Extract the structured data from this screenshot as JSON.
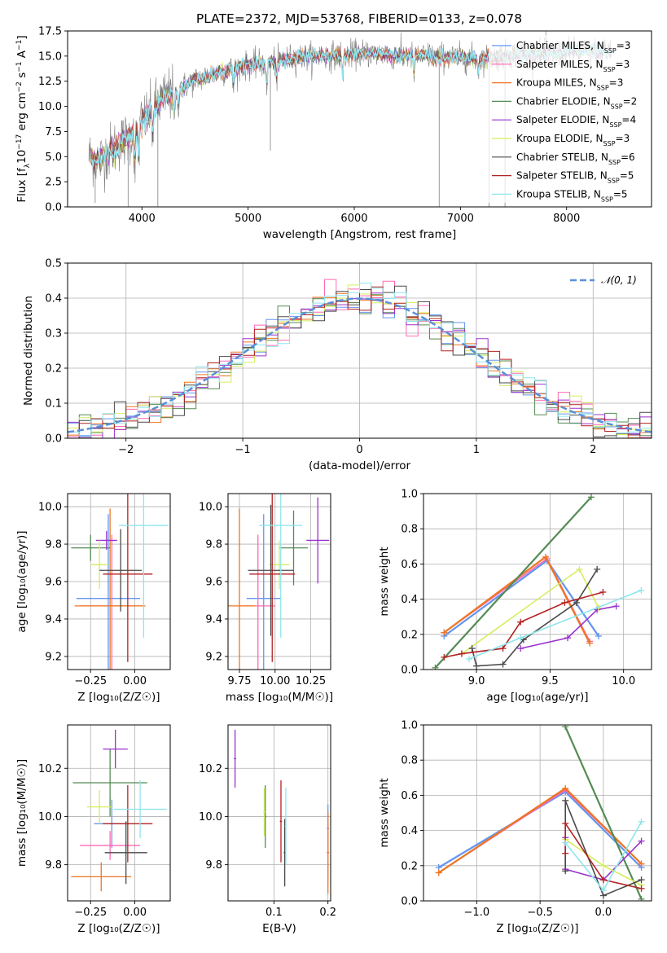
{
  "figure": {
    "title": "PLATE=2372, MJD=53768, FIBERID=0133, z=0.078"
  },
  "series": [
    {
      "name": "Chabrier MILES, N",
      "sub": "SSP",
      "suffix": "=3",
      "color": "#6495ed"
    },
    {
      "name": "Salpeter MILES, N",
      "sub": "SSP",
      "suffix": "=3",
      "color": "#ff69b4"
    },
    {
      "name": "Kroupa MILES, N",
      "sub": "SSP",
      "suffix": "=3",
      "color": "#ee7621"
    },
    {
      "name": "Chabrier ELODIE, N",
      "sub": "SSP",
      "suffix": "=2",
      "color": "#548b54"
    },
    {
      "name": "Salpeter ELODIE, N",
      "sub": "SSP",
      "suffix": "=4",
      "color": "#9a32cd"
    },
    {
      "name": "Kroupa ELODIE, N",
      "sub": "SSP",
      "suffix": "=3",
      "color": "#d4ee5e"
    },
    {
      "name": "Chabrier STELIB, N",
      "sub": "SSP",
      "suffix": "=6",
      "color": "#4a4a4a"
    },
    {
      "name": "Salpeter STELIB, N",
      "sub": "SSP",
      "suffix": "=5",
      "color": "#b22222"
    },
    {
      "name": "Kroupa STELIB, N",
      "sub": "SSP",
      "suffix": "=5",
      "color": "#8ee5ee"
    }
  ],
  "chart_data": [
    {
      "id": "spectrum",
      "type": "line",
      "xlabel": "wavelength [Angstrom, rest frame]",
      "ylabel_parts": [
        "Flux [f",
        "λ",
        "10",
        "−17",
        " erg cm",
        "−2",
        " s",
        "−1",
        " A",
        "−1",
        "]"
      ],
      "xlim": [
        3300,
        8800
      ],
      "ylim": [
        0,
        17.5
      ],
      "xticks": [
        4000,
        5000,
        6000,
        7000,
        8000
      ],
      "yticks": [
        0.0,
        2.5,
        5.0,
        7.5,
        10.0,
        12.5,
        15.0,
        17.5
      ],
      "data_color": "#808080",
      "model_color": "#8ee5ee",
      "continuum": {
        "x": [
          3500,
          3600,
          3700,
          3800,
          3900,
          4000,
          4100,
          4200,
          4300,
          4400,
          4500,
          4700,
          4900,
          5100,
          5300,
          5500,
          5700,
          5900,
          6100,
          6300,
          6500,
          6700,
          6900,
          7100,
          7300,
          7500,
          7700,
          7900,
          8100,
          8300
        ],
        "y": [
          5.0,
          4.6,
          5.6,
          6.4,
          7.0,
          8.5,
          9.5,
          10.8,
          11.4,
          12.0,
          12.6,
          13.3,
          13.9,
          14.2,
          14.6,
          14.9,
          15.0,
          15.1,
          15.3,
          15.2,
          15.0,
          15.0,
          14.9,
          14.8,
          14.8,
          15.2,
          15.3,
          15.2,
          15.5,
          15.4
        ]
      },
      "absorption_lines": [
        {
          "x": 3934,
          "depth": 4.0
        },
        {
          "x": 3969,
          "depth": 3.5
        },
        {
          "x": 4102,
          "depth": 2.5
        },
        {
          "x": 4304,
          "depth": 3.0
        },
        {
          "x": 4341,
          "depth": 2.0
        },
        {
          "x": 4861,
          "depth": 2.0
        },
        {
          "x": 5175,
          "depth": 3.0
        },
        {
          "x": 5270,
          "depth": 2.0
        },
        {
          "x": 5890,
          "depth": 2.5
        },
        {
          "x": 6563,
          "depth": 2.0
        },
        {
          "x": 7170,
          "depth": 1.5
        }
      ],
      "cutoffs": [
        {
          "x": 3560,
          "low": 0.4
        },
        {
          "x": 3870,
          "low": 0.0
        },
        {
          "x": 4150,
          "low": 0.0
        },
        {
          "x": 5210,
          "low": 5.6
        },
        {
          "x": 6800,
          "low": 0.0
        },
        {
          "x": 7270,
          "low": 0.0
        },
        {
          "x": 7420,
          "low": 0.0
        }
      ],
      "legend_position": "upper-right"
    },
    {
      "id": "residuals",
      "type": "line",
      "xlabel": "(data-model)/error",
      "ylabel": "Normed distribution",
      "xlim": [
        -2.5,
        2.5
      ],
      "ylim": [
        0,
        0.5
      ],
      "xticks": [
        -2,
        -1,
        0,
        1,
        2
      ],
      "xticklabels": [
        "−2",
        "−1",
        "0",
        "1",
        "2"
      ],
      "yticks": [
        0.0,
        0.1,
        0.2,
        0.3,
        0.4,
        0.5
      ],
      "bin_width": 0.1,
      "grid": true,
      "gaussian": {
        "label": "𝒩(0, 1)",
        "mean": 0,
        "sigma": 1,
        "color": "#5b8fd8"
      },
      "legend_position": "upper-right"
    },
    {
      "id": "age-vs-Z",
      "type": "scatter",
      "xlabel": "Z [log₁₀(Z/Z☉)]",
      "ylabel": "age  [log₁₀(age/yr)]",
      "xlim": [
        -0.38,
        0.2
      ],
      "ylim": [
        9.13,
        10.07
      ],
      "xticks": [
        -0.25,
        0.0
      ],
      "xticklabels": [
        "−0.25",
        "0.00"
      ],
      "yticks": [
        9.2,
        9.4,
        9.6,
        9.8,
        10.0
      ],
      "grid": true,
      "points": [
        {
          "series": 0,
          "x": -0.15,
          "y": 9.51,
          "xerr": 0.18,
          "yerr": 0.45
        },
        {
          "series": 1,
          "x": -0.13,
          "y": 9.47,
          "xerr": 0.18,
          "yerr": 0.38
        },
        {
          "series": 2,
          "x": -0.14,
          "y": 9.47,
          "xerr": 0.2,
          "yerr": 0.52
        },
        {
          "series": 3,
          "x": -0.25,
          "y": 9.78,
          "xerr": 0.11,
          "yerr": 0.07
        },
        {
          "series": 4,
          "x": -0.16,
          "y": 9.82,
          "xerr": 0.06,
          "yerr": 0.05
        },
        {
          "series": 5,
          "x": -0.2,
          "y": 9.69,
          "xerr": 0.05,
          "yerr": 0.13
        },
        {
          "series": 6,
          "x": -0.08,
          "y": 9.66,
          "xerr": 0.12,
          "yerr": 0.22
        },
        {
          "series": 7,
          "x": -0.04,
          "y": 9.64,
          "xerr": 0.14,
          "yerr": 0.47
        },
        {
          "series": 8,
          "x": 0.05,
          "y": 9.9,
          "xerr": 0.14,
          "yerr": 0.6
        }
      ]
    },
    {
      "id": "age-vs-mass",
      "type": "scatter",
      "xlabel": "mass [log₁₀(M/M☉)]",
      "ylabel": "",
      "xlim": [
        9.67,
        10.39
      ],
      "ylim": [
        9.13,
        10.07
      ],
      "xticks": [
        9.75,
        10.0,
        10.25
      ],
      "xticklabels": [
        "9.75",
        "10.00",
        "10.25"
      ],
      "yticks": [
        9.2,
        9.4,
        9.6,
        9.8,
        10.0
      ],
      "grid": true,
      "points": [
        {
          "series": 0,
          "x": 9.92,
          "y": 9.51,
          "xerr": 0.12,
          "yerr": 0.45
        },
        {
          "series": 1,
          "x": 9.88,
          "y": 9.47,
          "xerr": 0.12,
          "yerr": 0.38
        },
        {
          "series": 2,
          "x": 9.75,
          "y": 9.47,
          "xerr": 0.11,
          "yerr": 0.52
        },
        {
          "series": 3,
          "x": 10.13,
          "y": 9.78,
          "xerr": 0.1,
          "yerr": 0.2
        },
        {
          "series": 4,
          "x": 10.3,
          "y": 9.82,
          "xerr": 0.08,
          "yerr": 0.23
        },
        {
          "series": 5,
          "x": 10.03,
          "y": 9.69,
          "xerr": 0.07,
          "yerr": 0.13
        },
        {
          "series": 6,
          "x": 9.97,
          "y": 9.66,
          "xerr": 0.16,
          "yerr": 0.35
        },
        {
          "series": 7,
          "x": 9.98,
          "y": 9.64,
          "xerr": 0.16,
          "yerr": 0.47
        },
        {
          "series": 8,
          "x": 10.04,
          "y": 9.9,
          "xerr": 0.15,
          "yerr": 0.6
        }
      ]
    },
    {
      "id": "weight-vs-age",
      "type": "line",
      "xlabel": "age  [log₁₀(age/yr)]",
      "ylabel": "mass weight",
      "xlim": [
        8.64,
        10.19
      ],
      "ylim": [
        0,
        1
      ],
      "xticks": [
        9.0,
        9.5,
        10.0
      ],
      "xticklabels": [
        "9.0",
        "9.5",
        "10.0"
      ],
      "yticks": [
        0.0,
        0.2,
        0.4,
        0.6,
        0.8,
        1.0
      ],
      "grid": true,
      "lines": [
        {
          "series": 0,
          "x": [
            8.78,
            9.48,
            9.83
          ],
          "y": [
            0.19,
            0.62,
            0.19
          ]
        },
        {
          "series": 1,
          "x": [
            8.78,
            9.48,
            9.77
          ],
          "y": [
            0.21,
            0.63,
            0.16
          ]
        },
        {
          "series": 2,
          "x": [
            8.78,
            9.47,
            9.77
          ],
          "y": [
            0.21,
            0.64,
            0.15
          ]
        },
        {
          "series": 3,
          "x": [
            8.72,
            9.78
          ],
          "y": [
            0.01,
            0.98
          ]
        },
        {
          "series": 4,
          "x": [
            9.3,
            9.62,
            9.82,
            9.95
          ],
          "y": [
            0.12,
            0.18,
            0.34,
            0.36
          ]
        },
        {
          "series": 5,
          "x": [
            8.9,
            9.7,
            9.83
          ],
          "y": [
            0.09,
            0.57,
            0.35
          ]
        },
        {
          "series": 6,
          "x": [
            8.97,
            9.0,
            9.18,
            9.32,
            9.68,
            9.82
          ],
          "y": [
            0.12,
            0.02,
            0.03,
            0.17,
            0.38,
            0.57
          ]
        },
        {
          "series": 7,
          "x": [
            8.78,
            8.9,
            9.18,
            9.3,
            9.6,
            9.86
          ],
          "y": [
            0.07,
            0.09,
            0.12,
            0.27,
            0.38,
            0.44
          ]
        },
        {
          "series": 8,
          "x": [
            8.95,
            9.3,
            10.12
          ],
          "y": [
            0.06,
            0.18,
            0.45
          ]
        }
      ]
    },
    {
      "id": "mass-vs-Z",
      "type": "scatter",
      "xlabel": "Z [log₁₀(Z/Z☉)]",
      "ylabel": "mass [log₁₀(M/M☉)]",
      "xlim": [
        -0.38,
        0.2
      ],
      "ylim": [
        9.65,
        10.38
      ],
      "xticks": [
        -0.25,
        0.0
      ],
      "xticklabels": [
        "−0.25",
        "0.00"
      ],
      "yticks": [
        9.8,
        10.0,
        10.2
      ],
      "grid": true,
      "points": [
        {
          "series": 0,
          "x": -0.13,
          "y": 9.97,
          "xerr": 0.1,
          "yerr": 0.1
        },
        {
          "series": 1,
          "x": -0.14,
          "y": 9.88,
          "xerr": 0.17,
          "yerr": 0.06
        },
        {
          "series": 2,
          "x": -0.19,
          "y": 9.75,
          "xerr": 0.17,
          "yerr": 0.06
        },
        {
          "series": 3,
          "x": -0.14,
          "y": 10.14,
          "xerr": 0.21,
          "yerr": 0.14
        },
        {
          "series": 4,
          "x": -0.11,
          "y": 10.28,
          "xerr": 0.07,
          "yerr": 0.08
        },
        {
          "series": 5,
          "x": -0.2,
          "y": 10.04,
          "xerr": 0.07,
          "yerr": 0.07
        },
        {
          "series": 6,
          "x": -0.05,
          "y": 9.85,
          "xerr": 0.12,
          "yerr": 0.13
        },
        {
          "series": 7,
          "x": -0.04,
          "y": 9.97,
          "xerr": 0.14,
          "yerr": 0.16
        },
        {
          "series": 8,
          "x": 0.03,
          "y": 10.03,
          "xerr": 0.15,
          "yerr": 0.12
        }
      ]
    },
    {
      "id": "mass-vs-EBV",
      "type": "scatter",
      "xlabel": "E(B-V)",
      "ylabel": "",
      "xlim": [
        0.015,
        0.205
      ],
      "ylim": [
        9.65,
        10.38
      ],
      "xticks": [
        0.1,
        0.2
      ],
      "xticklabels": [
        "0.1",
        "0.2"
      ],
      "yticks": [
        9.8,
        10.0,
        10.2
      ],
      "grid": true,
      "points": [
        {
          "series": 0,
          "x": 0.2,
          "y": 9.95,
          "xerr": 0.002,
          "yerr": 0.1
        },
        {
          "series": 1,
          "x": 0.2,
          "y": 9.85,
          "xerr": 0.002,
          "yerr": 0.12
        },
        {
          "series": 2,
          "x": 0.2,
          "y": 9.85,
          "xerr": 0.002,
          "yerr": 0.17
        },
        {
          "series": 3,
          "x": 0.084,
          "y": 10.0,
          "xerr": 0.002,
          "yerr": 0.13
        },
        {
          "series": 4,
          "x": 0.028,
          "y": 10.24,
          "xerr": 0.002,
          "yerr": 0.12
        },
        {
          "series": 5,
          "x": 0.082,
          "y": 10.02,
          "xerr": 0.002,
          "yerr": 0.1
        },
        {
          "series": 6,
          "x": 0.12,
          "y": 9.85,
          "xerr": 0.002,
          "yerr": 0.14
        },
        {
          "series": 7,
          "x": 0.113,
          "y": 9.98,
          "xerr": 0.002,
          "yerr": 0.17
        },
        {
          "series": 8,
          "x": 0.122,
          "y": 9.96,
          "xerr": 0.002,
          "yerr": 0.16
        }
      ]
    },
    {
      "id": "weight-vs-Z",
      "type": "line",
      "xlabel": "Z [log₁₀(Z/Z☉)]",
      "ylabel": "mass weight",
      "xlim": [
        -1.42,
        0.38
      ],
      "ylim": [
        0,
        1
      ],
      "xticks": [
        -1.0,
        -0.5,
        0.0
      ],
      "xticklabels": [
        "−1.0",
        "−0.5",
        "0.0"
      ],
      "yticks": [
        0.0,
        0.2,
        0.4,
        0.6,
        0.8,
        1.0
      ],
      "grid": true,
      "lines": [
        {
          "series": 0,
          "x": [
            -1.3,
            -0.3,
            0.3
          ],
          "y": [
            0.19,
            0.62,
            0.19
          ]
        },
        {
          "series": 1,
          "x": [
            -1.3,
            -0.3,
            0.3
          ],
          "y": [
            0.16,
            0.63,
            0.21
          ]
        },
        {
          "series": 2,
          "x": [
            -1.3,
            -0.3,
            0.3
          ],
          "y": [
            0.16,
            0.64,
            0.21
          ]
        },
        {
          "series": 3,
          "x": [
            -0.3,
            0.3
          ],
          "y": [
            0.99,
            0.01
          ]
        },
        {
          "series": 4,
          "x": [
            -0.3,
            -0.3,
            0.0,
            0.3
          ],
          "y": [
            0.36,
            0.18,
            0.12,
            0.34
          ]
        },
        {
          "series": 5,
          "x": [
            -0.3,
            0.0,
            0.3
          ],
          "y": [
            0.35,
            0.2,
            0.09
          ]
        },
        {
          "series": 6,
          "x": [
            -0.3,
            -0.3,
            0.0,
            0.3
          ],
          "y": [
            0.17,
            0.57,
            0.03,
            0.12
          ]
        },
        {
          "series": 7,
          "x": [
            -0.3,
            -0.3,
            0.0,
            0.3
          ],
          "y": [
            0.27,
            0.44,
            0.12,
            0.07
          ]
        },
        {
          "series": 8,
          "x": [
            -0.3,
            0.0,
            0.3
          ],
          "y": [
            0.33,
            0.06,
            0.45
          ]
        }
      ]
    }
  ]
}
